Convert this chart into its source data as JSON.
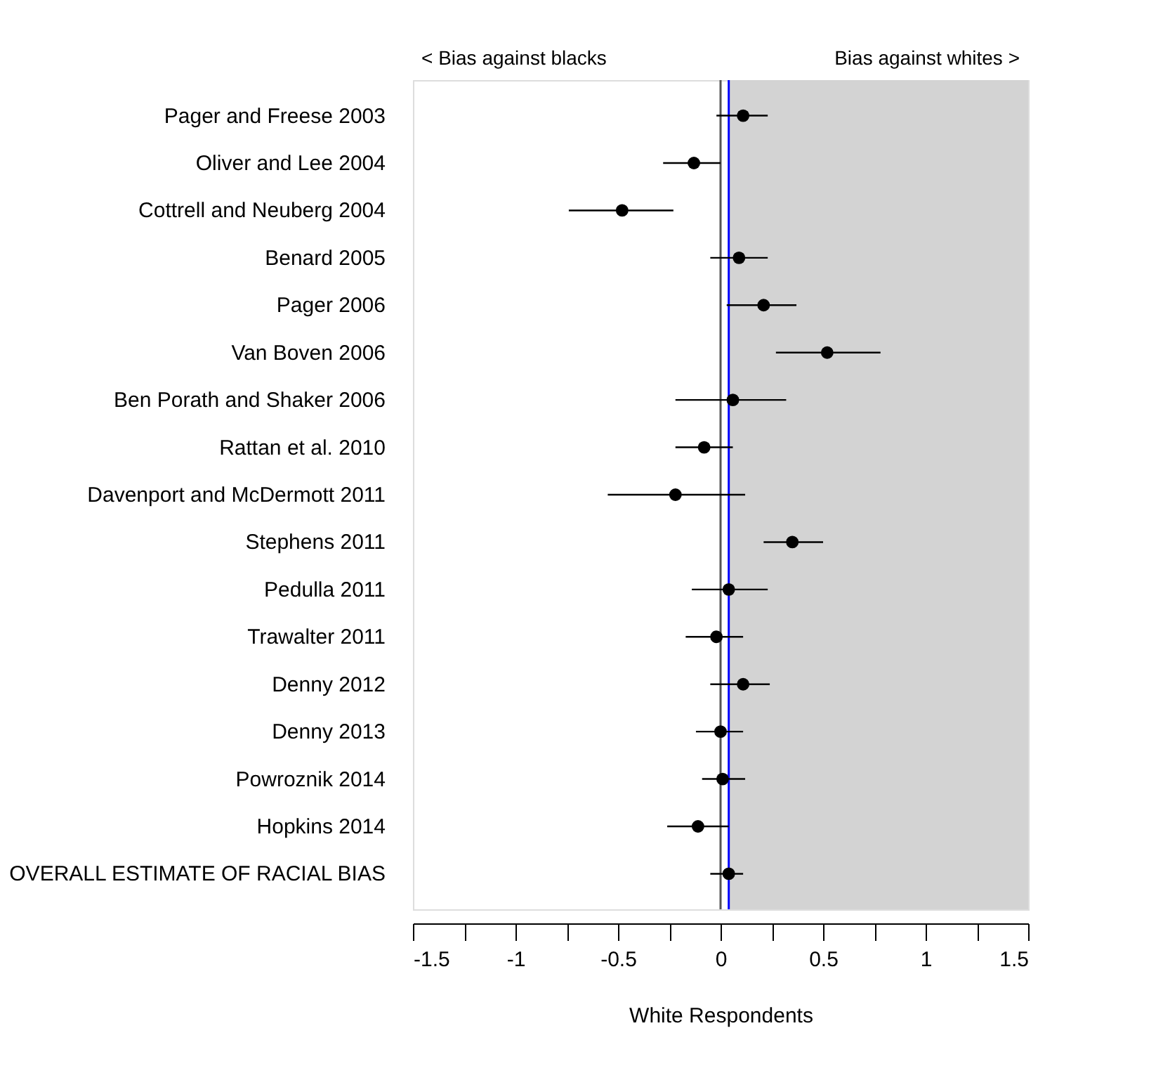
{
  "chart_data": {
    "type": "scatter",
    "orientation": "horizontal",
    "xlabel": "White Respondents",
    "categories": [
      "Pager and Freese 2003",
      "Oliver and Lee 2004",
      "Cottrell and Neuberg 2004",
      "Benard 2005",
      "Pager 2006",
      "Van Boven 2006",
      "Ben Porath and Shaker 2006",
      "Rattan et al. 2010",
      "Davenport and McDermott 2011",
      "Stephens 2011",
      "Pedulla 2011",
      "Trawalter 2011",
      "Denny 2012",
      "Denny 2013",
      "Powroznik 2014",
      "Hopkins 2014",
      "OVERALL ESTIMATE OF RACIAL BIAS"
    ],
    "series": [
      {
        "color": "#000000",
        "values": [
          0.11,
          -0.13,
          -0.48,
          0.09,
          0.21,
          0.52,
          0.06,
          -0.08,
          -0.22,
          0.35,
          0.04,
          -0.02,
          0.11,
          0.0,
          0.01,
          -0.11,
          0.04
        ],
        "errors": [
          [
            -0.02,
            0.23
          ],
          [
            -0.28,
            0.0
          ],
          [
            -0.74,
            -0.23
          ],
          [
            -0.05,
            0.23
          ],
          [
            0.03,
            0.37
          ],
          [
            0.27,
            0.78
          ],
          [
            -0.22,
            0.32
          ],
          [
            -0.22,
            0.06
          ],
          [
            -0.55,
            0.12
          ],
          [
            0.21,
            0.5
          ],
          [
            -0.14,
            0.23
          ],
          [
            -0.17,
            0.11
          ],
          [
            -0.05,
            0.24
          ],
          [
            -0.12,
            0.11
          ],
          [
            -0.09,
            0.12
          ],
          [
            -0.26,
            0.04
          ],
          [
            -0.05,
            0.11
          ]
        ]
      }
    ],
    "xlim": [
      -1.5,
      1.5
    ],
    "xticks": [
      -1.5,
      {
        "value": -1.25,
        "label": null
      },
      -1,
      {
        "value": -0.75,
        "label": null
      },
      -0.5,
      {
        "value": -0.25,
        "label": null
      },
      0,
      {
        "value": 0.25,
        "label": null
      },
      0.5,
      {
        "value": 0.75,
        "label": null
      },
      1,
      {
        "value": 1.25,
        "label": null
      },
      1.5
    ],
    "bands": [
      {
        "axis": "x",
        "from": 0.04,
        "to": 1.5,
        "color": "#d3d3d3"
      }
    ],
    "ref_lines": [
      {
        "axis": "x",
        "value": 0,
        "color": "#555555"
      },
      {
        "axis": "x",
        "value": 0.04,
        "color": "#0000ff"
      }
    ],
    "annotations": [
      "< Bias against blacks",
      "Bias against whites >"
    ],
    "marker": "circle",
    "grid": false
  }
}
